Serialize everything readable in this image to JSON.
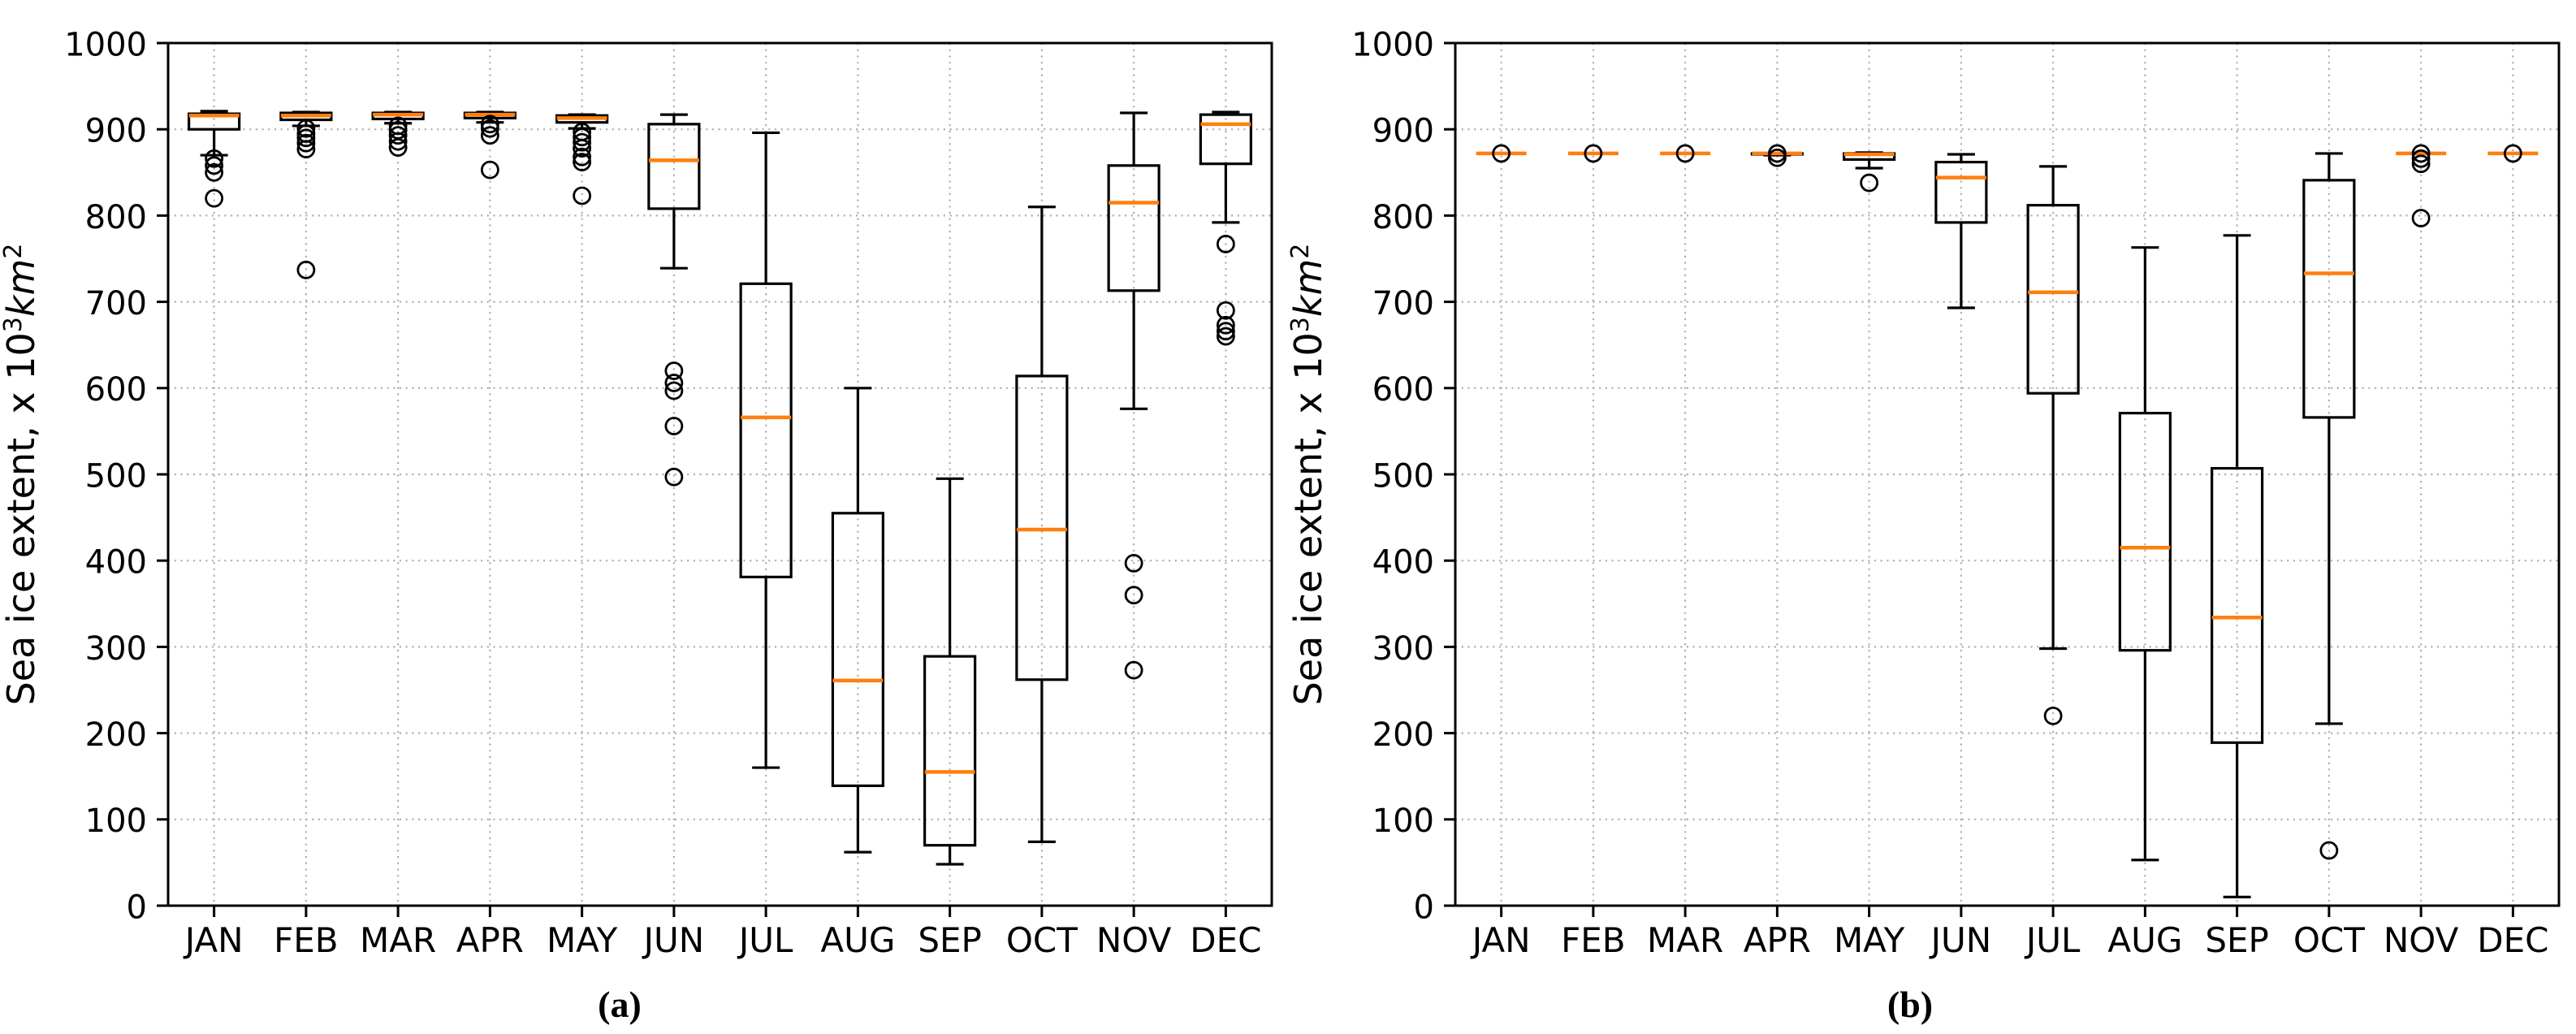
{
  "figure": {
    "background": "#ffffff",
    "text_color": "#000000",
    "grid_color": "#b0b0b0",
    "box_color": "#000000",
    "median_color": "#ff7f0e"
  },
  "chart_data": [
    {
      "type": "boxplot",
      "caption": "(a)",
      "ylabel_parts": [
        {
          "t": "Sea ice extent, x 10"
        },
        {
          "t": "3",
          "sup": true
        },
        {
          "t": "km",
          "italic": true
        },
        {
          "t": "2",
          "sup": true
        }
      ],
      "ylabel_text": "Sea ice extent, x 10³km²",
      "ylim": [
        0,
        1000
      ],
      "yticks": [
        0,
        100,
        200,
        300,
        400,
        500,
        600,
        700,
        800,
        900,
        1000
      ],
      "grid": "dotted",
      "legend": "none",
      "categories": [
        "JAN",
        "FEB",
        "MAR",
        "APR",
        "MAY",
        "JUN",
        "JUL",
        "AUG",
        "SEP",
        "OCT",
        "NOV",
        "DEC"
      ],
      "boxes": [
        {
          "label": "JAN",
          "q1": 900,
          "median": 916,
          "q3": 918,
          "whislo": 870,
          "whishi": 921,
          "fliers": [
            866,
            858,
            850,
            820
          ]
        },
        {
          "label": "FEB",
          "q1": 911,
          "median": 916,
          "q3": 919,
          "whislo": 904,
          "whishi": 920,
          "fliers": [
            901,
            895,
            890,
            884,
            877,
            737
          ]
        },
        {
          "label": "MAR",
          "q1": 912,
          "median": 917,
          "q3": 919,
          "whislo": 907,
          "whishi": 920,
          "fliers": [
            904,
            899,
            893,
            886,
            879
          ]
        },
        {
          "label": "APR",
          "q1": 913,
          "median": 917,
          "q3": 919,
          "whislo": 908,
          "whishi": 920,
          "fliers": [
            906,
            901,
            893,
            853
          ]
        },
        {
          "label": "MAY",
          "q1": 908,
          "median": 913,
          "q3": 916,
          "whislo": 901,
          "whishi": 917,
          "fliers": [
            897,
            891,
            885,
            878,
            868,
            862,
            823
          ]
        },
        {
          "label": "JUN",
          "q1": 808,
          "median": 864,
          "q3": 906,
          "whislo": 739,
          "whishi": 917,
          "fliers": [
            620,
            606,
            597,
            556,
            497
          ]
        },
        {
          "label": "JUL",
          "q1": 381,
          "median": 566,
          "q3": 721,
          "whislo": 160,
          "whishi": 896,
          "fliers": []
        },
        {
          "label": "AUG",
          "q1": 139,
          "median": 261,
          "q3": 455,
          "whislo": 62,
          "whishi": 600,
          "fliers": []
        },
        {
          "label": "SEP",
          "q1": 70,
          "median": 155,
          "q3": 289,
          "whislo": 48,
          "whishi": 495,
          "fliers": []
        },
        {
          "label": "OCT",
          "q1": 262,
          "median": 436,
          "q3": 614,
          "whislo": 74,
          "whishi": 810,
          "fliers": []
        },
        {
          "label": "NOV",
          "q1": 713,
          "median": 815,
          "q3": 858,
          "whislo": 576,
          "whishi": 919,
          "fliers": [
            397,
            360,
            273
          ]
        },
        {
          "label": "DEC",
          "q1": 860,
          "median": 906,
          "q3": 917,
          "whislo": 792,
          "whishi": 920,
          "fliers": [
            767,
            690,
            673,
            666,
            660
          ]
        }
      ]
    },
    {
      "type": "boxplot",
      "caption": "(b)",
      "ylabel_parts": [
        {
          "t": "Sea ice extent, x 10"
        },
        {
          "t": "3",
          "sup": true
        },
        {
          "t": "km",
          "italic": true
        },
        {
          "t": "2",
          "sup": true
        }
      ],
      "ylabel_text": "Sea ice extent, x 10³km²",
      "ylim": [
        0,
        1000
      ],
      "yticks": [
        0,
        100,
        200,
        300,
        400,
        500,
        600,
        700,
        800,
        900,
        1000
      ],
      "grid": "dotted",
      "legend": "none",
      "categories": [
        "JAN",
        "FEB",
        "MAR",
        "APR",
        "MAY",
        "JUN",
        "JUL",
        "AUG",
        "SEP",
        "OCT",
        "NOV",
        "DEC"
      ],
      "boxes": [
        {
          "label": "JAN",
          "q1": 872,
          "median": 872,
          "q3": 872,
          "whislo": 872,
          "whishi": 872,
          "fliers": [
            872
          ]
        },
        {
          "label": "FEB",
          "q1": 872,
          "median": 872,
          "q3": 872,
          "whislo": 872,
          "whishi": 872,
          "fliers": [
            872
          ]
        },
        {
          "label": "MAR",
          "q1": 872,
          "median": 872,
          "q3": 872,
          "whislo": 872,
          "whishi": 872,
          "fliers": [
            872
          ]
        },
        {
          "label": "APR",
          "q1": 871,
          "median": 872,
          "q3": 872,
          "whislo": 870,
          "whishi": 872,
          "fliers": [
            872,
            867
          ]
        },
        {
          "label": "MAY",
          "q1": 865,
          "median": 871,
          "q3": 872,
          "whislo": 855,
          "whishi": 873,
          "fliers": [
            838
          ]
        },
        {
          "label": "JUN",
          "q1": 792,
          "median": 844,
          "q3": 862,
          "whislo": 693,
          "whishi": 871,
          "fliers": []
        },
        {
          "label": "JUL",
          "q1": 594,
          "median": 711,
          "q3": 812,
          "whislo": 298,
          "whishi": 857,
          "fliers": [
            220
          ]
        },
        {
          "label": "AUG",
          "q1": 296,
          "median": 415,
          "q3": 571,
          "whislo": 53,
          "whishi": 763,
          "fliers": []
        },
        {
          "label": "SEP",
          "q1": 189,
          "median": 334,
          "q3": 507,
          "whislo": 10,
          "whishi": 777,
          "fliers": []
        },
        {
          "label": "OCT",
          "q1": 566,
          "median": 733,
          "q3": 841,
          "whislo": 211,
          "whishi": 872,
          "fliers": [
            64
          ]
        },
        {
          "label": "NOV",
          "q1": 872,
          "median": 872,
          "q3": 872,
          "whislo": 872,
          "whishi": 872,
          "fliers": [
            872,
            866,
            860,
            797
          ]
        },
        {
          "label": "DEC",
          "q1": 872,
          "median": 872,
          "q3": 872,
          "whislo": 872,
          "whishi": 872,
          "fliers": [
            872
          ]
        }
      ]
    }
  ]
}
